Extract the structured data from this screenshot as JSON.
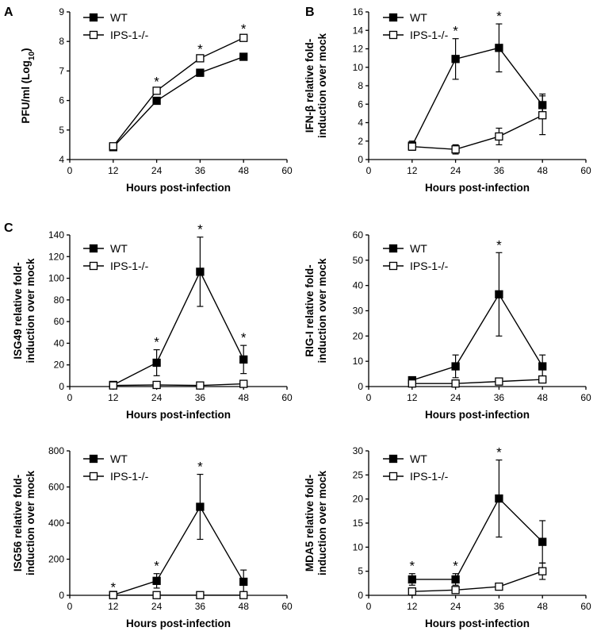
{
  "panel_labels": [
    "A",
    "B",
    "C"
  ],
  "chart_data": [
    {
      "id": "A",
      "type": "line",
      "xlabel": "Hours post-infection",
      "ylabel_parts": [
        "PFU/ml (Log",
        "10",
        ")"
      ],
      "xlim": [
        0,
        60
      ],
      "ylim": [
        4,
        9
      ],
      "xticks": [
        0,
        12,
        24,
        36,
        48,
        60
      ],
      "yticks": [
        4,
        5,
        6,
        7,
        8,
        9
      ],
      "x": [
        12,
        24,
        36,
        48
      ],
      "series": [
        {
          "name": "WT",
          "marker": "filled-square",
          "values": [
            4.42,
            5.99,
            6.94,
            7.48
          ],
          "errors": [
            0.03,
            0.06,
            0.12,
            0.04
          ]
        },
        {
          "name": "IPS-1-/-",
          "marker": "open-square",
          "values": [
            4.45,
            6.33,
            7.43,
            8.12
          ],
          "errors": [
            0.03,
            0.05,
            0.05,
            0.04
          ]
        }
      ],
      "significant_x": [
        24,
        36,
        48
      ]
    },
    {
      "id": "B",
      "type": "line",
      "xlabel": "Hours post-infection",
      "ylabel_lines": [
        "IFN-β relative fold-",
        "induction over mock"
      ],
      "xlim": [
        0,
        60
      ],
      "ylim": [
        0,
        16
      ],
      "xticks": [
        0,
        12,
        24,
        36,
        48,
        60
      ],
      "yticks": [
        0,
        2,
        4,
        6,
        8,
        10,
        12,
        14,
        16
      ],
      "x": [
        12,
        24,
        36,
        48
      ],
      "series": [
        {
          "name": "WT",
          "marker": "filled-square",
          "values": [
            1.5,
            10.9,
            12.1,
            5.9
          ],
          "errors": [
            0.5,
            2.2,
            2.6,
            1.2
          ]
        },
        {
          "name": "IPS-1-/-",
          "marker": "open-square",
          "values": [
            1.4,
            1.1,
            2.5,
            4.8
          ],
          "errors": [
            0.4,
            0.5,
            0.9,
            2.1
          ]
        }
      ],
      "significant_x": [
        24,
        36
      ]
    },
    {
      "id": "C1",
      "type": "line",
      "xlabel": "Hours post-infection",
      "ylabel_lines": [
        "ISG49 relative fold-",
        "induction over mock"
      ],
      "xlim": [
        0,
        60
      ],
      "ylim": [
        0,
        140
      ],
      "xticks": [
        0,
        12,
        24,
        36,
        48,
        60
      ],
      "yticks": [
        0,
        20,
        40,
        60,
        80,
        100,
        120,
        140
      ],
      "x": [
        12,
        24,
        36,
        48
      ],
      "series": [
        {
          "name": "WT",
          "marker": "filled-square",
          "values": [
            1.5,
            22,
            106,
            25
          ],
          "errors": [
            1,
            12,
            32,
            13
          ]
        },
        {
          "name": "IPS-1-/-",
          "marker": "open-square",
          "values": [
            1,
            1.5,
            1,
            2.5
          ],
          "errors": [
            0.5,
            1,
            0.8,
            1.5
          ]
        }
      ],
      "significant_x": [
        24,
        36,
        48
      ]
    },
    {
      "id": "C2",
      "type": "line",
      "xlabel": "Hours post-infection",
      "ylabel_lines": [
        "RIG-I relative fold-",
        "induction over mock"
      ],
      "xlim": [
        0,
        60
      ],
      "ylim": [
        0,
        60
      ],
      "xticks": [
        0,
        12,
        24,
        36,
        48,
        60
      ],
      "yticks": [
        0,
        10,
        20,
        30,
        40,
        50,
        60
      ],
      "x": [
        12,
        24,
        36,
        48
      ],
      "series": [
        {
          "name": "WT",
          "marker": "filled-square",
          "values": [
            2.5,
            8,
            36.5,
            8
          ],
          "errors": [
            1,
            4.5,
            16.5,
            4.5
          ]
        },
        {
          "name": "IPS-1-/-",
          "marker": "open-square",
          "values": [
            1.2,
            1.2,
            2,
            2.8
          ],
          "errors": [
            0.5,
            0.5,
            0.5,
            1.2
          ]
        }
      ],
      "significant_x": [
        36
      ]
    },
    {
      "id": "C3",
      "type": "line",
      "xlabel": "Hours post-infection",
      "ylabel_lines": [
        "ISG56 relative fold-",
        "induction over mock"
      ],
      "xlim": [
        0,
        60
      ],
      "ylim": [
        0,
        800
      ],
      "xticks": [
        0,
        12,
        24,
        36,
        48,
        60
      ],
      "yticks": [
        0,
        200,
        400,
        600,
        800
      ],
      "x": [
        12,
        24,
        36,
        48
      ],
      "series": [
        {
          "name": "WT",
          "marker": "filled-square",
          "values": [
            2,
            80,
            490,
            75
          ],
          "errors": [
            1,
            40,
            180,
            65
          ]
        },
        {
          "name": "IPS-1-/-",
          "marker": "open-square",
          "values": [
            1,
            1,
            1,
            1
          ],
          "errors": [
            0.5,
            0.5,
            0.5,
            0.5
          ]
        }
      ],
      "significant_x": [
        12,
        24,
        36
      ]
    },
    {
      "id": "C4",
      "type": "line",
      "xlabel": "Hours post-infection",
      "ylabel_lines": [
        "MDA5 relative fold-",
        "induction over mock"
      ],
      "xlim": [
        0,
        60
      ],
      "ylim": [
        0,
        30
      ],
      "xticks": [
        0,
        12,
        24,
        36,
        48,
        60
      ],
      "yticks": [
        0,
        5,
        10,
        15,
        20,
        25,
        30
      ],
      "x": [
        12,
        24,
        36,
        48
      ],
      "series": [
        {
          "name": "WT",
          "marker": "filled-square",
          "values": [
            3.3,
            3.3,
            20.1,
            11.1
          ],
          "errors": [
            1.2,
            1.2,
            8,
            4.4
          ]
        },
        {
          "name": "IPS-1-/-",
          "marker": "open-square",
          "values": [
            0.8,
            1.1,
            1.8,
            5
          ],
          "errors": [
            0.4,
            0.4,
            0.4,
            1.7
          ]
        }
      ],
      "significant_x": [
        12,
        24,
        36
      ]
    }
  ]
}
